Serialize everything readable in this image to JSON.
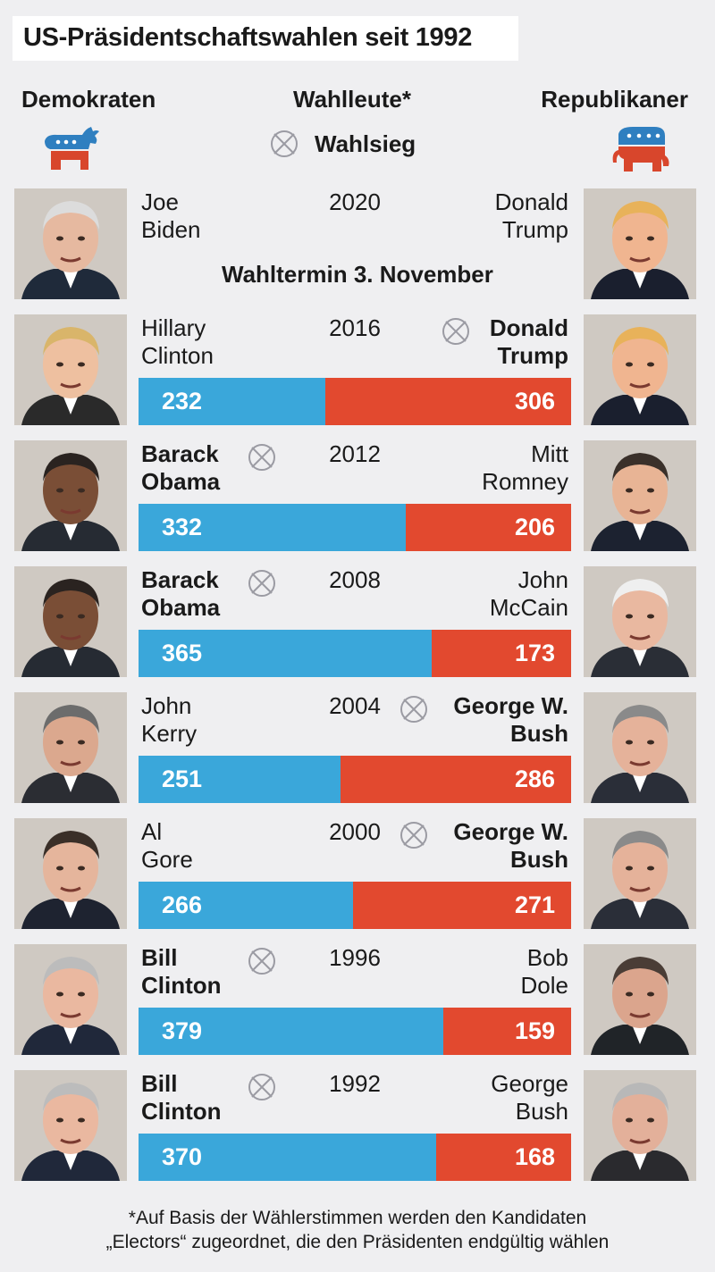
{
  "title": "US-Präsidentschaftswahlen seit 1992",
  "header": {
    "democrats": "Demokraten",
    "electors": "Wahlleute*",
    "republicans": "Republikaner",
    "win_legend": "Wahlsieg"
  },
  "colors": {
    "democrat": "#3aa7da",
    "republican": "#e2492f",
    "background": "#efeff1"
  },
  "icons": {
    "democrat_logo": "donkey-icon",
    "republican_logo": "elephant-icon",
    "win_marker": "crossed-circle-icon"
  },
  "election_2020_note": "Wahltermin 3. November",
  "footnote": [
    "*Auf Basis der Wählerstimmen werden den Kandidaten",
    "„Electors“ zugeordnet, die den Präsidenten endgültig wählen"
  ],
  "chart_data": {
    "type": "bar",
    "title": "US-Präsidentschaftswahlen seit 1992",
    "value_label": "Wahlleute*",
    "elections": [
      {
        "year": "2020",
        "democrat": [
          "Joe",
          "Biden"
        ],
        "republican": [
          "Donald",
          "Trump"
        ],
        "winner": null,
        "democrat_electors": null,
        "republican_electors": null
      },
      {
        "year": "2016",
        "democrat": [
          "Hillary",
          "Clinton"
        ],
        "republican": [
          "Donald",
          "Trump"
        ],
        "winner": "republican",
        "democrat_electors": 232,
        "republican_electors": 306
      },
      {
        "year": "2012",
        "democrat": [
          "Barack",
          "Obama"
        ],
        "republican": [
          "Mitt",
          "Romney"
        ],
        "winner": "democrat",
        "democrat_electors": 332,
        "republican_electors": 206
      },
      {
        "year": "2008",
        "democrat": [
          "Barack",
          "Obama"
        ],
        "republican": [
          "John",
          "McCain"
        ],
        "winner": "democrat",
        "democrat_electors": 365,
        "republican_electors": 173
      },
      {
        "year": "2004",
        "democrat": [
          "John",
          "Kerry"
        ],
        "republican": [
          "George W.",
          "Bush"
        ],
        "winner": "republican",
        "democrat_electors": 251,
        "republican_electors": 286
      },
      {
        "year": "2000",
        "democrat": [
          "Al",
          "Gore"
        ],
        "republican": [
          "George W.",
          "Bush"
        ],
        "winner": "republican",
        "democrat_electors": 266,
        "republican_electors": 271
      },
      {
        "year": "1996",
        "democrat": [
          "Bill",
          "Clinton"
        ],
        "republican": [
          "Bob",
          "Dole"
        ],
        "winner": "democrat",
        "democrat_electors": 379,
        "republican_electors": 159
      },
      {
        "year": "1992",
        "democrat": [
          "Bill",
          "Clinton"
        ],
        "republican": [
          "George",
          "Bush"
        ],
        "winner": "democrat",
        "democrat_electors": 370,
        "republican_electors": 168
      }
    ]
  }
}
